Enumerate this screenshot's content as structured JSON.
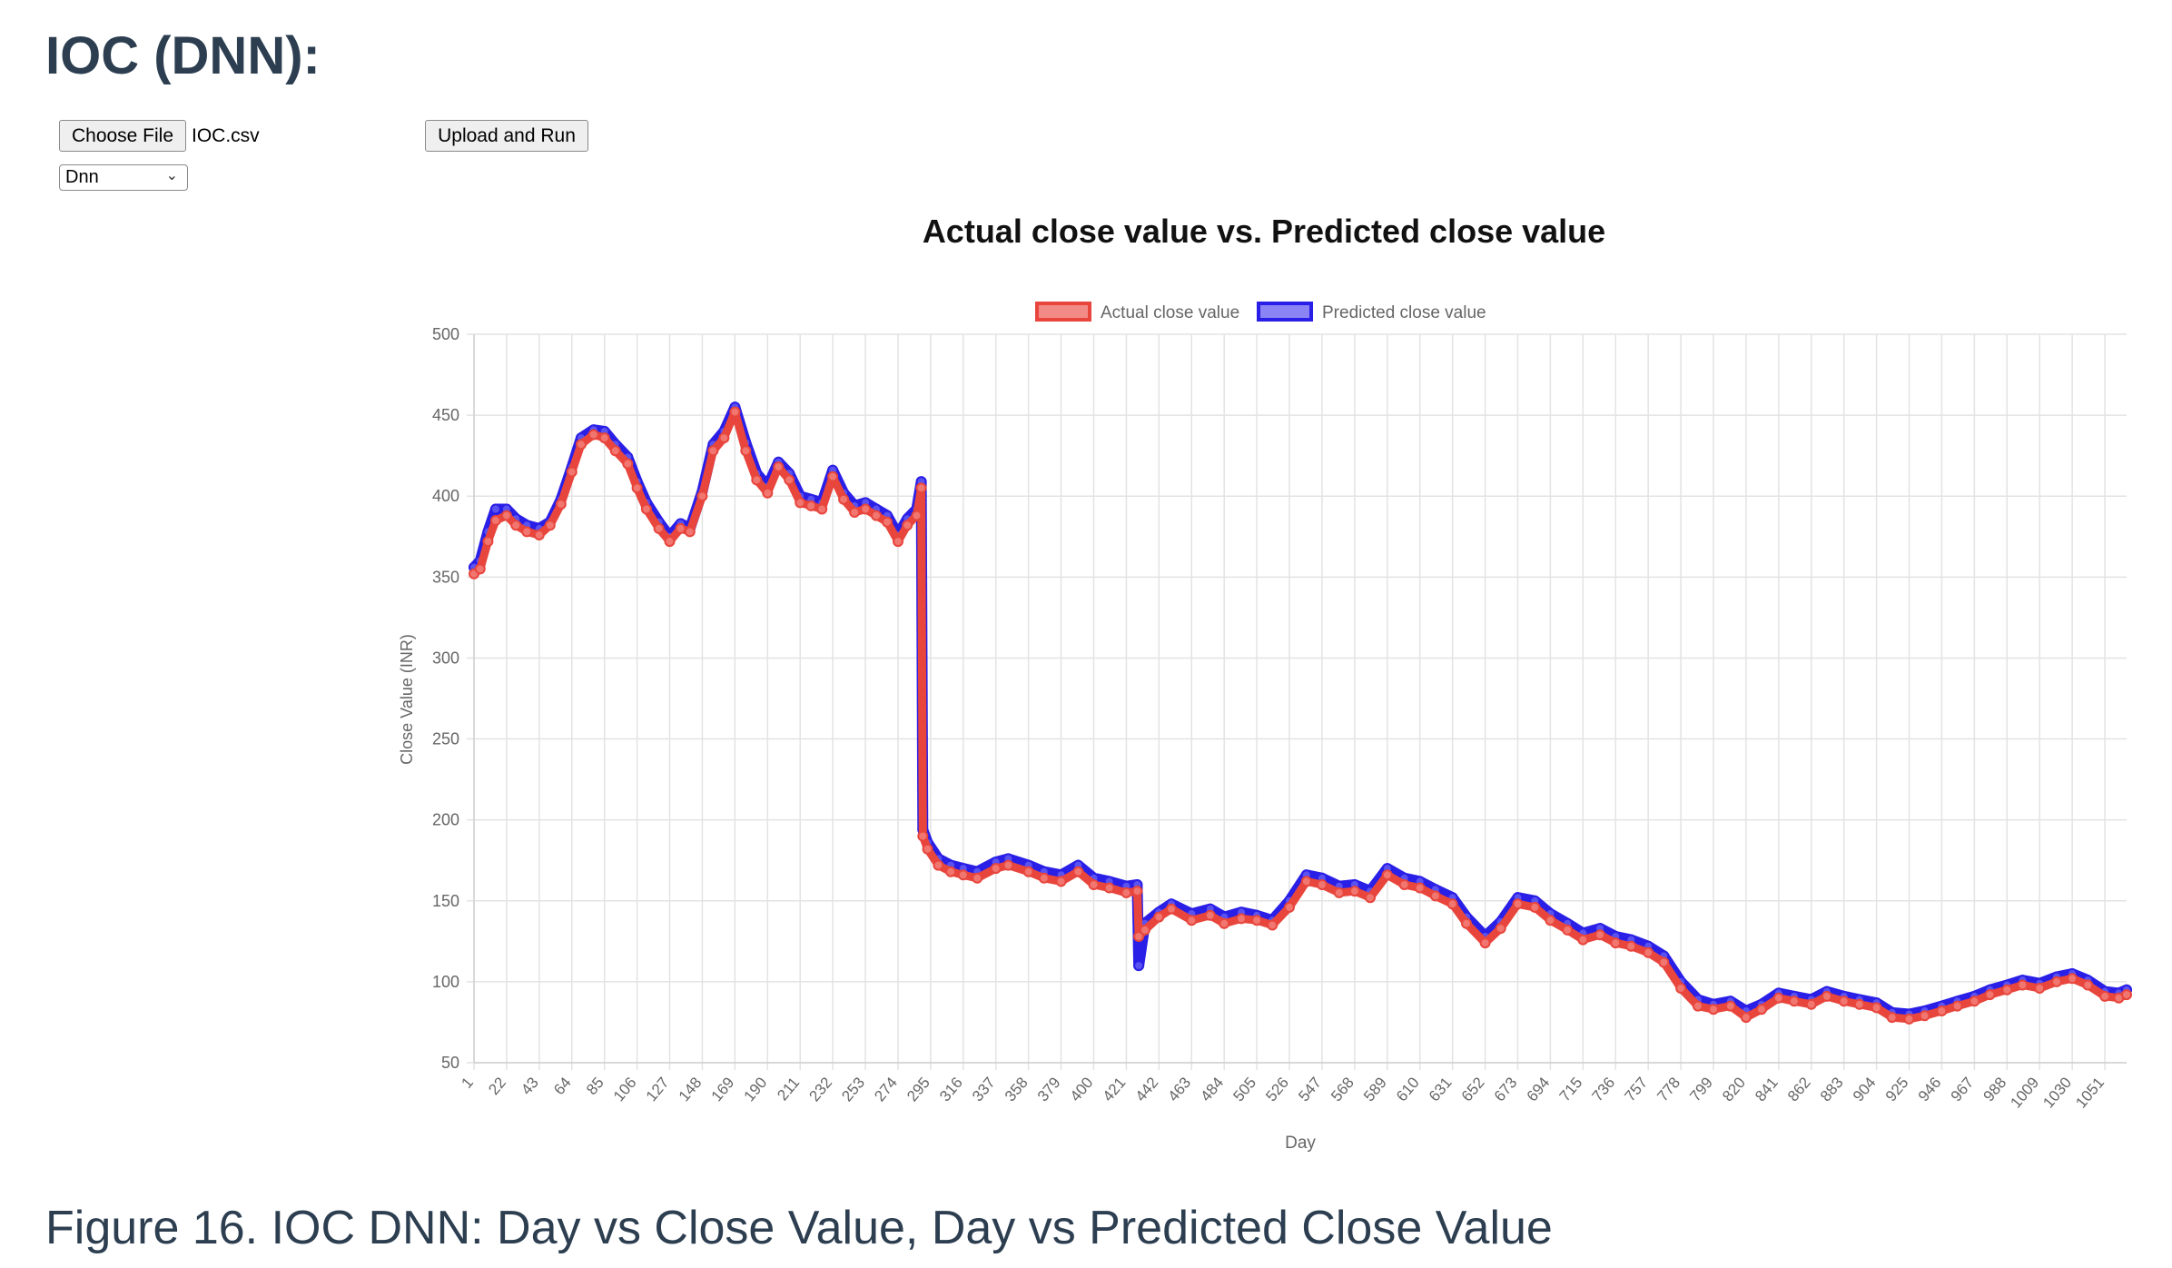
{
  "page": {
    "heading": "IOC (DNN):",
    "caption": "Figure 16. IOC DNN: Day vs Close Value, Day vs Predicted Close Value"
  },
  "controls": {
    "choose_file_label": "Choose File",
    "file_name": "IOC.csv",
    "upload_run_label": "Upload and Run",
    "model_selected": "Dnn"
  },
  "chart_data": {
    "type": "line",
    "title": "Actual close value vs. Predicted close value",
    "xlabel": "Day",
    "ylabel": "Close Value (INR)",
    "ylim": [
      50,
      500
    ],
    "yticks": [
      50,
      100,
      150,
      200,
      250,
      300,
      350,
      400,
      450,
      500
    ],
    "xlim": [
      1,
      1065
    ],
    "xticks": [
      1,
      22,
      43,
      64,
      85,
      106,
      127,
      148,
      169,
      190,
      211,
      232,
      253,
      274,
      295,
      316,
      337,
      358,
      379,
      400,
      421,
      442,
      463,
      484,
      505,
      526,
      547,
      568,
      589,
      610,
      631,
      652,
      673,
      694,
      715,
      736,
      757,
      778,
      799,
      820,
      841,
      862,
      883,
      904,
      925,
      946,
      967,
      988,
      1009,
      1030,
      1051
    ],
    "grid": true,
    "legend_position": "top-center",
    "x": [
      1,
      5,
      10,
      15,
      22,
      28,
      35,
      43,
      50,
      57,
      64,
      70,
      78,
      85,
      92,
      100,
      106,
      112,
      120,
      127,
      134,
      140,
      148,
      155,
      162,
      169,
      176,
      183,
      190,
      197,
      204,
      211,
      218,
      225,
      232,
      239,
      246,
      253,
      260,
      267,
      274,
      280,
      286,
      289,
      290,
      293,
      300,
      308,
      316,
      325,
      337,
      345,
      358,
      368,
      379,
      390,
      400,
      410,
      421,
      428,
      429,
      433,
      442,
      450,
      463,
      475,
      484,
      495,
      505,
      515,
      526,
      537,
      547,
      558,
      568,
      578,
      589,
      600,
      610,
      620,
      631,
      640,
      652,
      662,
      673,
      684,
      694,
      705,
      715,
      726,
      736,
      746,
      757,
      767,
      778,
      789,
      799,
      810,
      820,
      830,
      841,
      851,
      862,
      872,
      883,
      893,
      904,
      914,
      925,
      935,
      946,
      956,
      967,
      977,
      988,
      998,
      1009,
      1020,
      1030,
      1040,
      1051,
      1060,
      1065
    ],
    "series": [
      {
        "name": "Actual close value",
        "color": "#e8453c",
        "values": [
          352,
          355,
          372,
          385,
          388,
          382,
          378,
          376,
          382,
          395,
          415,
          432,
          438,
          436,
          428,
          420,
          405,
          392,
          380,
          372,
          380,
          378,
          400,
          428,
          436,
          452,
          428,
          410,
          402,
          418,
          410,
          396,
          394,
          392,
          412,
          398,
          390,
          392,
          388,
          384,
          372,
          382,
          388,
          405,
          190,
          182,
          172,
          168,
          166,
          164,
          170,
          172,
          168,
          164,
          162,
          168,
          160,
          158,
          155,
          156,
          128,
          132,
          140,
          145,
          138,
          141,
          136,
          139,
          138,
          135,
          146,
          162,
          160,
          155,
          156,
          152,
          166,
          160,
          158,
          153,
          148,
          136,
          124,
          133,
          148,
          146,
          138,
          132,
          126,
          129,
          124,
          122,
          118,
          112,
          96,
          85,
          83,
          85,
          78,
          83,
          90,
          88,
          86,
          91,
          88,
          86,
          84,
          78,
          77,
          79,
          82,
          85,
          88,
          92,
          95,
          98,
          96,
          100,
          102,
          98,
          91,
          90,
          92
        ]
      },
      {
        "name": "Predicted close value",
        "color": "#2a1fe6",
        "values": [
          356,
          360,
          378,
          392,
          392,
          386,
          382,
          380,
          384,
          398,
          418,
          436,
          441,
          440,
          432,
          424,
          409,
          396,
          384,
          375,
          383,
          380,
          403,
          432,
          440,
          455,
          433,
          414,
          406,
          421,
          414,
          400,
          398,
          396,
          416,
          402,
          394,
          396,
          392,
          388,
          376,
          386,
          392,
          409,
          194,
          186,
          176,
          172,
          170,
          168,
          174,
          176,
          172,
          168,
          166,
          172,
          164,
          162,
          159,
          160,
          110,
          136,
          143,
          148,
          142,
          145,
          140,
          143,
          141,
          138,
          150,
          166,
          164,
          159,
          160,
          156,
          170,
          164,
          162,
          157,
          152,
          140,
          128,
          137,
          152,
          150,
          142,
          136,
          130,
          133,
          128,
          126,
          122,
          116,
          100,
          89,
          86,
          88,
          82,
          86,
          93,
          91,
          89,
          94,
          91,
          89,
          87,
          81,
          80,
          82,
          85,
          88,
          91,
          95,
          98,
          101,
          99,
          103,
          105,
          101,
          94,
          93,
          95
        ]
      }
    ]
  }
}
